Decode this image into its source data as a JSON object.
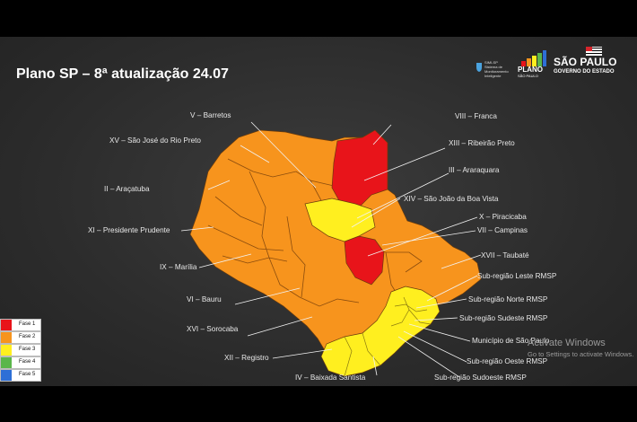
{
  "title": "Plano SP – 8ª atualização 24.07",
  "logos": {
    "sim_sp": {
      "name": "SIMI-SP",
      "tagline": "Sistema de Monitoramento Inteligente"
    },
    "plano": {
      "line1": "PLANO",
      "line2": "SÃO PAULO"
    },
    "governo": {
      "line1": "SÃO PAULO",
      "line2": "GOVERNO DO ESTADO"
    }
  },
  "regions": [
    {
      "id": "barretos",
      "label": "V – Barretos",
      "phase": 2
    },
    {
      "id": "rio-preto",
      "label": "XV – São José do Rio Preto",
      "phase": 2
    },
    {
      "id": "aracatuba",
      "label": "II – Araçatuba",
      "phase": 2
    },
    {
      "id": "pres-prudente",
      "label": "XI – Presidente Prudente",
      "phase": 2
    },
    {
      "id": "marilia",
      "label": "IX – Marília",
      "phase": 2
    },
    {
      "id": "bauru",
      "label": "VI – Bauru",
      "phase": 2
    },
    {
      "id": "sorocaba",
      "label": "XVI – Sorocaba",
      "phase": 2
    },
    {
      "id": "registro",
      "label": "XII – Registro",
      "phase": 3
    },
    {
      "id": "baixada",
      "label": "IV – Baixada Santista",
      "phase": 3
    },
    {
      "id": "franca",
      "label": "VIII – Franca",
      "phase": 1
    },
    {
      "id": "ribeirao",
      "label": "XIII – Ribeirão Preto",
      "phase": 1
    },
    {
      "id": "araraquara",
      "label": "III – Araraquara",
      "phase": 2
    },
    {
      "id": "sjbv",
      "label": "XIV – São João da Boa Vista",
      "phase": 3
    },
    {
      "id": "piracicaba",
      "label": "X – Piracicaba",
      "phase": 1
    },
    {
      "id": "campinas",
      "label": "VII – Campinas",
      "phase": 2
    },
    {
      "id": "taubate",
      "label": "XVII – Taubaté",
      "phase": 2
    },
    {
      "id": "rmsp-leste",
      "label": "Sub-região Leste RMSP",
      "phase": 3
    },
    {
      "id": "rmsp-norte",
      "label": "Sub-região Norte RMSP",
      "phase": 3
    },
    {
      "id": "rmsp-sudeste",
      "label": "Sub-região Sudeste RMSP",
      "phase": 3
    },
    {
      "id": "municipio-sp",
      "label": "Município de São Paulo",
      "phase": 3
    },
    {
      "id": "rmsp-oeste",
      "label": "Sub-região Oeste RMSP",
      "phase": 3
    },
    {
      "id": "rmsp-sudoeste",
      "label": "Sub-região Sudoeste RMSP",
      "phase": 3
    }
  ],
  "legend": [
    {
      "label": "Fase 1",
      "color": "#e8141a"
    },
    {
      "label": "Fase 2",
      "color": "#f7941d"
    },
    {
      "label": "Fase 3",
      "color": "#ffef1f"
    },
    {
      "label": "Fase 4",
      "color": "#5bb64a"
    },
    {
      "label": "Fase 5",
      "color": "#2e6fd6"
    }
  ],
  "map_colors": {
    "phase1": "#e8141a",
    "phase2": "#f7941d",
    "phase3": "#ffef1f",
    "phase2_dark": "#f08a12"
  },
  "watermark": {
    "line1": "Activate Windows",
    "line2": "Go to Settings to activate Windows."
  }
}
